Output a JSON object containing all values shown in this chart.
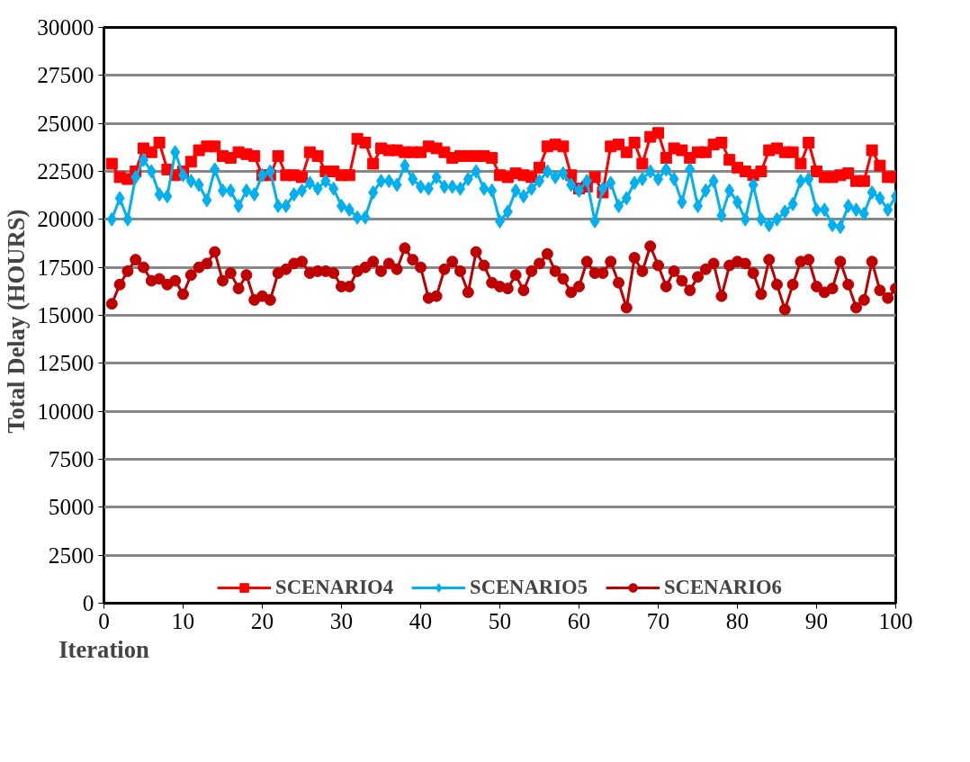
{
  "chart_data": {
    "type": "line",
    "xlabel": "Iteration",
    "ylabel": "Total  Delay  (HOURS)",
    "x": [
      1,
      2,
      3,
      4,
      5,
      6,
      7,
      8,
      9,
      10,
      11,
      12,
      13,
      14,
      15,
      16,
      17,
      18,
      19,
      20,
      21,
      22,
      23,
      24,
      25,
      26,
      27,
      28,
      29,
      30,
      31,
      32,
      33,
      34,
      35,
      36,
      37,
      38,
      39,
      40,
      41,
      42,
      43,
      44,
      45,
      46,
      47,
      48,
      49,
      50,
      51,
      52,
      53,
      54,
      55,
      56,
      57,
      58,
      59,
      60,
      61,
      62,
      63,
      64,
      65,
      66,
      67,
      68,
      69,
      70,
      71,
      72,
      73,
      74,
      75,
      76,
      77,
      78,
      79,
      80,
      81,
      82,
      83,
      84,
      85,
      86,
      87,
      88,
      89,
      90,
      91,
      92,
      93,
      94,
      95,
      96,
      97,
      98,
      99,
      100
    ],
    "series": [
      {
        "name": "SCENARIO4",
        "color": "#ff0000",
        "marker": "square",
        "values": [
          22900,
          22200,
          22100,
          22500,
          23700,
          23500,
          24000,
          22600,
          22300,
          22500,
          23000,
          23600,
          23800,
          23800,
          23300,
          23200,
          23500,
          23400,
          23300,
          22300,
          22300,
          23300,
          22300,
          22300,
          22200,
          23500,
          23300,
          22500,
          22500,
          22300,
          22300,
          24200,
          24000,
          22900,
          23700,
          23600,
          23600,
          23500,
          23500,
          23500,
          23800,
          23700,
          23500,
          23200,
          23300,
          23300,
          23300,
          23300,
          23200,
          22300,
          22200,
          22400,
          22300,
          22200,
          22700,
          23800,
          23900,
          23800,
          22300,
          21600,
          21700,
          22200,
          21400,
          23800,
          23900,
          23500,
          24000,
          22900,
          24300,
          24500,
          23200,
          23700,
          23600,
          23200,
          23500,
          23500,
          23900,
          24000,
          23100,
          22700,
          22500,
          22300,
          22500,
          23600,
          23700,
          23500,
          23500,
          22900,
          24000,
          22500,
          22200,
          22200,
          22300,
          22400,
          22000,
          22000,
          23600,
          22800,
          22200,
          22200
        ]
      },
      {
        "name": "SCENARIO5",
        "color": "#00b0f0",
        "marker": "diamond",
        "values": [
          20000,
          21100,
          20000,
          22200,
          23100,
          22500,
          21300,
          21200,
          23500,
          22300,
          22000,
          21800,
          21000,
          22600,
          21500,
          21500,
          20700,
          21500,
          21300,
          22300,
          22500,
          20700,
          20700,
          21300,
          21500,
          21900,
          21600,
          22000,
          21600,
          20700,
          20500,
          20100,
          20100,
          21400,
          22000,
          22000,
          21800,
          22800,
          22100,
          21700,
          21600,
          22200,
          21700,
          21700,
          21600,
          22100,
          22500,
          21600,
          21500,
          19900,
          20400,
          21500,
          21200,
          21600,
          22000,
          22500,
          22200,
          22400,
          21800,
          21500,
          22000,
          19900,
          21600,
          21900,
          20700,
          21100,
          21900,
          22100,
          22500,
          22100,
          22600,
          22100,
          20900,
          22600,
          20700,
          21500,
          22000,
          20200,
          21500,
          20900,
          20000,
          21800,
          20000,
          19700,
          20000,
          20400,
          20800,
          22000,
          22100,
          20500,
          20500,
          19700,
          19600,
          20700,
          20500,
          20300,
          21400,
          21100,
          20500,
          21200
        ]
      },
      {
        "name": "SCENARIO6",
        "color": "#c00000",
        "marker": "circle",
        "values": [
          15600,
          16600,
          17300,
          17900,
          17500,
          16800,
          16900,
          16600,
          16800,
          16100,
          17100,
          17500,
          17700,
          18300,
          16800,
          17200,
          16400,
          17100,
          15800,
          16000,
          15800,
          17200,
          17400,
          17700,
          17800,
          17200,
          17300,
          17300,
          17200,
          16500,
          16500,
          17300,
          17500,
          17800,
          17300,
          17700,
          17400,
          18500,
          17900,
          17500,
          15900,
          16000,
          17400,
          17800,
          17300,
          16200,
          18300,
          17600,
          16700,
          16500,
          16400,
          17100,
          16300,
          17300,
          17700,
          18200,
          17300,
          16900,
          16200,
          16500,
          17800,
          17200,
          17200,
          17800,
          16700,
          15400,
          18000,
          17300,
          18600,
          17600,
          16500,
          17300,
          16800,
          16300,
          17000,
          17400,
          17700,
          16000,
          17600,
          17800,
          17700,
          17200,
          16100,
          17900,
          16600,
          15300,
          16600,
          17800,
          17900,
          16500,
          16200,
          16400,
          17800,
          16600,
          15400,
          15800,
          17800,
          16300,
          15900,
          16400
        ]
      }
    ],
    "xlim": [
      0,
      100
    ],
    "xticks": [
      0,
      10,
      20,
      30,
      40,
      50,
      60,
      70,
      80,
      90,
      100
    ],
    "ylim": [
      0,
      30000
    ],
    "yticks": [
      0,
      2500,
      5000,
      7500,
      10000,
      12500,
      15000,
      17500,
      20000,
      22500,
      25000,
      27500,
      30000
    ],
    "grid": "y",
    "legend": "bottom",
    "line_style": "solid"
  }
}
